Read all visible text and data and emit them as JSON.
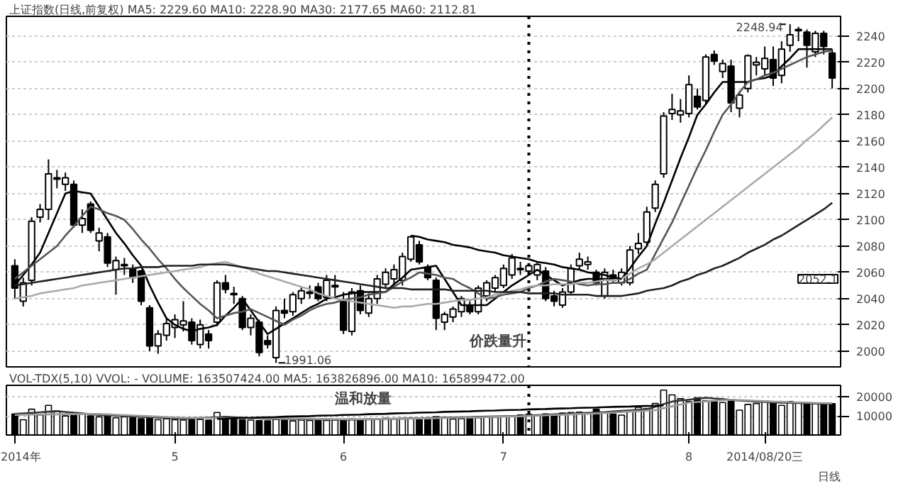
{
  "chart_data": [
    {
      "type": "candlestick",
      "title": "上证指数(日线,前复权) MA5: 2229.60 MA10: 2228.90 MA30: 2177.65 MA60: 2112.81",
      "categories": [
        null,
        null,
        null,
        null,
        null,
        null,
        null,
        null,
        null,
        null,
        null,
        null,
        null,
        null,
        null,
        null,
        null,
        null,
        null,
        null,
        null,
        null,
        null,
        null,
        null,
        null,
        null,
        null,
        null,
        null,
        null,
        null,
        null,
        null,
        null,
        null,
        null,
        null,
        null,
        null,
        null,
        null,
        null,
        null,
        null,
        null,
        null,
        null,
        null,
        null,
        null,
        null,
        null,
        null,
        null,
        null,
        null,
        null,
        null,
        null,
        null,
        null,
        null,
        null,
        null,
        null,
        null,
        null,
        null,
        null,
        null,
        null,
        null,
        null,
        null,
        null,
        null,
        null,
        null,
        null,
        null,
        null,
        null,
        null,
        null,
        null,
        null,
        null,
        null,
        null,
        null,
        null,
        null,
        null,
        null,
        null,
        null,
        null
      ],
      "ohlc": [
        [
          2065,
          2070,
          2040,
          2048
        ],
        [
          2038,
          2056,
          2034,
          2052
        ],
        [
          2054,
          2102,
          2050,
          2099
        ],
        [
          2102,
          2112,
          2098,
          2108
        ],
        [
          2108,
          2146,
          2100,
          2135
        ],
        [
          2131,
          2138,
          2124,
          2132
        ],
        [
          2127,
          2136,
          2122,
          2132
        ],
        [
          2127,
          2130,
          2094,
          2096
        ],
        [
          2096,
          2108,
          2090,
          2101
        ],
        [
          2112,
          2114,
          2090,
          2092
        ],
        [
          2084,
          2094,
          2076,
          2090
        ],
        [
          2087,
          2090,
          2064,
          2067
        ],
        [
          2062,
          2072,
          2043,
          2069
        ],
        [
          2065,
          2071,
          2058,
          2066
        ],
        [
          2063,
          2066,
          2052,
          2056
        ],
        [
          2061,
          2062,
          2035,
          2038
        ],
        [
          2033,
          2035,
          2000,
          2004
        ],
        [
          2004,
          2016,
          1998,
          2013
        ],
        [
          2012,
          2025,
          2008,
          2021
        ],
        [
          2018,
          2028,
          2010,
          2024
        ],
        [
          2020,
          2038,
          2015,
          2023
        ],
        [
          2022,
          2025,
          2005,
          2008
        ],
        [
          2005,
          2024,
          2002,
          2020
        ],
        [
          2013,
          2016,
          2002,
          2008
        ],
        [
          2022,
          2054,
          2019,
          2052
        ],
        [
          2052,
          2058,
          2044,
          2047
        ],
        [
          2044,
          2049,
          2036,
          2043
        ],
        [
          2040,
          2042,
          2016,
          2018
        ],
        [
          2018,
          2028,
          2012,
          2025
        ],
        [
          2022,
          2024,
          1996,
          1999
        ],
        [
          2008,
          2012,
          2002,
          2005
        ],
        [
          1995,
          2034,
          1991.06,
          2031
        ],
        [
          2031,
          2040,
          2025,
          2029
        ],
        [
          2030,
          2045,
          2027,
          2043
        ],
        [
          2040,
          2049,
          2036,
          2046
        ],
        [
          2044,
          2050,
          2040,
          2045
        ],
        [
          2049,
          2052,
          2038,
          2040
        ],
        [
          2041,
          2058,
          2038,
          2054
        ],
        [
          2049,
          2058,
          2042,
          2050
        ],
        [
          2038,
          2045,
          2013,
          2016
        ],
        [
          2015,
          2048,
          2012,
          2045
        ],
        [
          2046,
          2050,
          2028,
          2031
        ],
        [
          2029,
          2044,
          2026,
          2040
        ],
        [
          2040,
          2058,
          2036,
          2055
        ],
        [
          2051,
          2063,
          2048,
          2060
        ],
        [
          2055,
          2066,
          2050,
          2062
        ],
        [
          2054,
          2075,
          2050,
          2072
        ],
        [
          2070,
          2088,
          2068,
          2087
        ],
        [
          2081,
          2084,
          2066,
          2068
        ],
        [
          2064,
          2066,
          2054,
          2056
        ],
        [
          2054,
          2056,
          2016,
          2025
        ],
        [
          2022,
          2030,
          2016,
          2028
        ],
        [
          2026,
          2034,
          2022,
          2032
        ],
        [
          2030,
          2042,
          2026,
          2040
        ],
        [
          2035,
          2038,
          2028,
          2030
        ],
        [
          2030,
          2050,
          2028,
          2048
        ],
        [
          2042,
          2054,
          2038,
          2052
        ],
        [
          2048,
          2058,
          2045,
          2056
        ],
        [
          2050,
          2066,
          2048,
          2063
        ],
        [
          2058,
          2074,
          2055,
          2071
        ],
        [
          2063,
          2068,
          2058,
          2062
        ],
        [
          2061,
          2067,
          2058,
          2065
        ],
        [
          2058,
          2068,
          2054,
          2066
        ],
        [
          2061,
          2064,
          2038,
          2040
        ],
        [
          2042,
          2046,
          2034,
          2038
        ],
        [
          2035,
          2048,
          2033,
          2045
        ],
        [
          2045,
          2066,
          2043,
          2063
        ],
        [
          2065,
          2075,
          2062,
          2070
        ],
        [
          2066,
          2072,
          2062,
          2068
        ],
        [
          2060,
          2062,
          2050,
          2052
        ],
        [
          2042,
          2063,
          2040,
          2060
        ],
        [
          2058,
          2062,
          2052,
          2054
        ],
        [
          2052,
          2063,
          2050,
          2060
        ],
        [
          2052,
          2080,
          2050,
          2077
        ],
        [
          2078,
          2090,
          2074,
          2082
        ],
        [
          2083,
          2110,
          2080,
          2106
        ],
        [
          2109,
          2130,
          2106,
          2127
        ],
        [
          2135,
          2182,
          2132,
          2179
        ],
        [
          2181,
          2196,
          2176,
          2184
        ],
        [
          2180,
          2192,
          2174,
          2183
        ],
        [
          2181,
          2210,
          2178,
          2203
        ],
        [
          2194,
          2200,
          2184,
          2186
        ],
        [
          2191,
          2226,
          2188,
          2224
        ],
        [
          2226,
          2229,
          2218,
          2221
        ],
        [
          2213,
          2222,
          2208,
          2219
        ],
        [
          2217,
          2222,
          2182,
          2189
        ],
        [
          2185,
          2198,
          2178,
          2195
        ],
        [
          2200,
          2226,
          2197,
          2225
        ],
        [
          2218,
          2224,
          2210,
          2220
        ],
        [
          2215,
          2232,
          2210,
          2223
        ],
        [
          2222,
          2232,
          2202,
          2208
        ],
        [
          2210,
          2236,
          2204,
          2230
        ],
        [
          2233,
          2248.94,
          2228,
          2241
        ],
        [
          2244,
          2247,
          2236,
          2245
        ],
        [
          2243,
          2245,
          2216,
          2233
        ],
        [
          2228,
          2244,
          2224,
          2242
        ],
        [
          2242,
          2244,
          2226,
          2232
        ],
        [
          2227,
          2230,
          2200,
          2208
        ]
      ],
      "series": [
        {
          "type": "line",
          "color": "#000000",
          "values": [
            2050,
            2058,
            2066,
            2075,
            2090,
            2105,
            2120,
            2122,
            2121,
            2120,
            2110,
            2100,
            2090,
            2082,
            2073,
            2065,
            2050,
            2037,
            2025,
            2020,
            2017,
            2015,
            2017,
            2018,
            2020,
            2027,
            2033,
            2040,
            2031,
            2022,
            2013,
            2017,
            2021,
            2025,
            2029,
            2033,
            2036,
            2040,
            2041,
            2043,
            2044,
            2045,
            2045,
            2045,
            2045,
            2051,
            2056,
            2062,
            2063,
            2064,
            2065,
            2055,
            2045,
            2035,
            2035,
            2035,
            2035,
            2040,
            2045,
            2050,
            2054,
            2058,
            2062,
            2058,
            2054,
            2050,
            2052,
            2054,
            2055,
            2055,
            2055,
            2055,
            2055,
            2063,
            2072,
            2080,
            2097,
            2113,
            2130,
            2147,
            2163,
            2180,
            2188,
            2197,
            2205,
            2205,
            2205,
            2205,
            2207,
            2208,
            2210,
            2217,
            2223,
            2230,
            2230,
            2230,
            2230,
            2230
          ]
        },
        {
          "type": "line",
          "color": "#555555",
          "values": [
            2055,
            2060,
            2065,
            2070,
            2075,
            2080,
            2088,
            2095,
            2103,
            2110,
            2108,
            2105,
            2103,
            2100,
            2093,
            2085,
            2078,
            2070,
            2063,
            2055,
            2048,
            2042,
            2036,
            2031,
            2025,
            2027,
            2029,
            2030,
            2032,
            2029,
            2026,
            2023,
            2020,
            2024,
            2027,
            2031,
            2034,
            2036,
            2037,
            2039,
            2040,
            2041,
            2043,
            2044,
            2045,
            2049,
            2053,
            2056,
            2060,
            2059,
            2058,
            2056,
            2055,
            2051,
            2048,
            2044,
            2040,
            2041,
            2043,
            2044,
            2045,
            2048,
            2050,
            2053,
            2055,
            2054,
            2053,
            2051,
            2050,
            2051,
            2051,
            2052,
            2052,
            2055,
            2059,
            2062,
            2074,
            2086,
            2098,
            2112,
            2126,
            2140,
            2153,
            2167,
            2180,
            2188,
            2197,
            2205,
            2207,
            2210,
            2212,
            2215,
            2218,
            2221,
            2224,
            2226,
            2228,
            2229
          ]
        },
        {
          "type": "line",
          "color": "#aaaaaa",
          "values": [
            2040,
            2041,
            2042,
            2044,
            2045,
            2046,
            2047,
            2048,
            2050,
            2051,
            2052,
            2053,
            2054,
            2055,
            2056,
            2057,
            2058,
            2059,
            2060,
            2061,
            2062,
            2063,
            2064,
            2066,
            2067,
            2068,
            2066,
            2064,
            2062,
            2059,
            2057,
            2055,
            2053,
            2051,
            2049,
            2047,
            2044,
            2042,
            2040,
            2039,
            2038,
            2037,
            2036,
            2035,
            2034,
            2033,
            2034,
            2034,
            2035,
            2036,
            2036,
            2037,
            2038,
            2039,
            2039,
            2040,
            2041,
            2043,
            2044,
            2046,
            2047,
            2049,
            2050,
            2050,
            2051,
            2051,
            2051,
            2052,
            2052,
            2053,
            2054,
            2054,
            2055,
            2059,
            2063,
            2066,
            2070,
            2075,
            2080,
            2085,
            2090,
            2095,
            2100,
            2105,
            2110,
            2115,
            2120,
            2125,
            2130,
            2135,
            2140,
            2145,
            2150,
            2155,
            2161,
            2166,
            2172,
            2178
          ]
        },
        {
          "type": "line",
          "color": "#222222",
          "values": [
            2050,
            2051,
            2052,
            2053,
            2054,
            2055,
            2056,
            2057,
            2058,
            2059,
            2060,
            2061,
            2062,
            2063,
            2063,
            2064,
            2064,
            2064,
            2065,
            2065,
            2065,
            2065,
            2066,
            2066,
            2066,
            2066,
            2065,
            2064,
            2063,
            2062,
            2061,
            2061,
            2060,
            2059,
            2058,
            2057,
            2056,
            2055,
            2054,
            2053,
            2052,
            2051,
            2050,
            2049,
            2048,
            2048,
            2048,
            2047,
            2047,
            2047,
            2047,
            2047,
            2046,
            2046,
            2046,
            2046,
            2046,
            2045,
            2045,
            2045,
            2045,
            2044,
            2044,
            2044,
            2044,
            2043,
            2043,
            2043,
            2043,
            2042,
            2042,
            2042,
            2042,
            2043,
            2044,
            2046,
            2047,
            2048,
            2050,
            2053,
            2055,
            2058,
            2060,
            2063,
            2065,
            2068,
            2071,
            2075,
            2078,
            2081,
            2085,
            2088,
            2092,
            2096,
            2100,
            2104,
            2108,
            2113
          ]
        },
        {
          "type": "line",
          "color": "#000000",
          "values": [
            null,
            null,
            null,
            null,
            null,
            null,
            null,
            null,
            null,
            null,
            null,
            null,
            null,
            null,
            null,
            null,
            null,
            null,
            null,
            null,
            null,
            null,
            null,
            null,
            null,
            null,
            null,
            null,
            null,
            null,
            null,
            null,
            null,
            null,
            null,
            null,
            null,
            null,
            null,
            null,
            null,
            null,
            null,
            null,
            null,
            null,
            null,
            2088,
            2087,
            2085,
            2084,
            2083,
            2081,
            2080,
            2079,
            2077,
            2076,
            2075,
            2073,
            2072,
            2071,
            2070,
            2068,
            2067,
            2066,
            2064,
            2063,
            2062,
            2060,
            2059,
            2058,
            2056,
            2055,
            null,
            null,
            null,
            null,
            null,
            null,
            null,
            null,
            null,
            null,
            null,
            null,
            null,
            null,
            null,
            null,
            null,
            null,
            null,
            null,
            null,
            null,
            null,
            null,
            null
          ]
        }
      ],
      "ylim": [
        1988,
        2255
      ],
      "yticks": [
        2000,
        2020,
        2040,
        2060,
        2080,
        2100,
        2120,
        2140,
        2160,
        2180,
        2200,
        2220,
        2240
      ],
      "grid": "y",
      "tick_labels": "y",
      "annotations": [
        "1991.06",
        "2248.94",
        "2052.1",
        "价跌量升"
      ]
    },
    {
      "type": "bar",
      "title": "VOL-TDX(5,10) VVOL: - VOLUME: 163507424.00 MA5: 163826896.00 MA10: 165899472.00",
      "categories": [
        "2014年",
        null,
        null,
        null,
        null,
        null,
        null,
        null,
        null,
        null,
        null,
        null,
        null,
        null,
        null,
        null,
        null,
        null,
        null,
        "5",
        null,
        null,
        null,
        null,
        null,
        null,
        null,
        null,
        null,
        null,
        null,
        null,
        null,
        null,
        null,
        null,
        null,
        null,
        null,
        "6",
        null,
        null,
        null,
        null,
        null,
        null,
        null,
        null,
        null,
        null,
        null,
        null,
        null,
        null,
        null,
        null,
        null,
        null,
        "7",
        null,
        null,
        null,
        null,
        null,
        null,
        null,
        null,
        null,
        null,
        null,
        null,
        null,
        null,
        null,
        null,
        null,
        null,
        null,
        null,
        null,
        "8",
        null,
        null,
        null,
        null,
        null,
        null,
        null,
        null,
        "2014/08/20三",
        null,
        null,
        null,
        null,
        null,
        null,
        null,
        null
      ],
      "values": [
        11000,
        8000,
        13500,
        10500,
        15500,
        12500,
        10000,
        10500,
        11000,
        10000,
        9500,
        10000,
        9000,
        9500,
        9000,
        8500,
        9000,
        8000,
        8500,
        8000,
        7800,
        8000,
        8200,
        7800,
        11800,
        9500,
        8500,
        8000,
        7800,
        7500,
        7400,
        8200,
        7600,
        7400,
        7800,
        7600,
        8000,
        7600,
        7800,
        8200,
        8400,
        8000,
        8400,
        8200,
        8800,
        8600,
        8700,
        8900,
        8800,
        9000,
        9500,
        9200,
        8400,
        8600,
        8500,
        9000,
        9200,
        9400,
        9600,
        9600,
        10500,
        10800,
        10400,
        11000,
        10200,
        11500,
        11800,
        12000,
        11400,
        13500,
        11600,
        11000,
        10400,
        12200,
        14500,
        13800,
        16500,
        23500,
        21000,
        19000,
        17500,
        19500,
        18000,
        17800,
        17000,
        17800,
        13000,
        16000,
        16500,
        17800,
        17000,
        15500,
        17500,
        17000,
        16800,
        16600,
        16400,
        16400
      ],
      "colors": [
        "#000000",
        "#ffffff",
        "#ffffff",
        "#ffffff",
        "#ffffff",
        "#ffffff",
        "#ffffff",
        "#000000",
        "#ffffff",
        "#000000",
        "#ffffff",
        "#000000",
        "#ffffff",
        "#ffffff",
        "#000000",
        "#000000",
        "#000000",
        "#ffffff",
        "#ffffff",
        "#ffffff",
        "#ffffff",
        "#000000",
        "#ffffff",
        "#000000",
        "#ffffff",
        "#000000",
        "#000000",
        "#000000",
        "#ffffff",
        "#000000",
        "#000000",
        "#ffffff",
        "#000000",
        "#ffffff",
        "#ffffff",
        "#ffffff",
        "#000000",
        "#ffffff",
        "#ffffff",
        "#000000",
        "#ffffff",
        "#000000",
        "#ffffff",
        "#ffffff",
        "#ffffff",
        "#ffffff",
        "#ffffff",
        "#ffffff",
        "#000000",
        "#000000",
        "#000000",
        "#ffffff",
        "#ffffff",
        "#ffffff",
        "#000000",
        "#ffffff",
        "#ffffff",
        "#ffffff",
        "#ffffff",
        "#ffffff",
        "#000000",
        "#ffffff",
        "#ffffff",
        "#000000",
        "#000000",
        "#ffffff",
        "#ffffff",
        "#ffffff",
        "#ffffff",
        "#000000",
        "#ffffff",
        "#000000",
        "#ffffff",
        "#ffffff",
        "#ffffff",
        "#ffffff",
        "#ffffff",
        "#ffffff",
        "#ffffff",
        "#ffffff",
        "#ffffff",
        "#000000",
        "#ffffff",
        "#000000",
        "#ffffff",
        "#000000",
        "#ffffff",
        "#ffffff",
        "#ffffff",
        "#ffffff",
        "#000000",
        "#ffffff",
        "#ffffff",
        "#ffffff",
        "#000000",
        "#ffffff",
        "#000000",
        "#000000"
      ],
      "series": [
        {
          "type": "line",
          "color": "#333333",
          "values": [
            11000,
            11300,
            11600,
            11900,
            12200,
            12500,
            12100,
            11700,
            11300,
            10900,
            10500,
            10300,
            10100,
            9900,
            9700,
            9500,
            9300,
            9100,
            8900,
            8700,
            8500,
            8700,
            8900,
            9100,
            9300,
            9500,
            9300,
            9100,
            8900,
            8700,
            8500,
            8500,
            8400,
            8400,
            8300,
            8300,
            8200,
            8200,
            8100,
            8100,
            8000,
            8100,
            8200,
            8300,
            8400,
            8500,
            8600,
            8700,
            8800,
            8900,
            9000,
            9100,
            9200,
            9300,
            9400,
            9500,
            9600,
            9700,
            9800,
            9900,
            10000,
            10200,
            10400,
            10600,
            10800,
            11000,
            11200,
            11400,
            11600,
            11800,
            12000,
            12300,
            12600,
            12900,
            13200,
            13500,
            14800,
            16200,
            17500,
            18000,
            18500,
            19000,
            19500,
            19100,
            18800,
            18400,
            18000,
            17800,
            17500,
            17300,
            17000,
            16900,
            16800,
            16700,
            16600,
            16500,
            16400,
            16400
          ]
        },
        {
          "type": "line",
          "color": "#999999",
          "values": [
            10500,
            10600,
            10700,
            10700,
            10800,
            10800,
            10900,
            10900,
            11000,
            11000,
            11000,
            10800,
            10600,
            10400,
            10200,
            10000,
            9800,
            9600,
            9400,
            9200,
            9000,
            9000,
            9000,
            8900,
            8900,
            8900,
            8900,
            8900,
            8800,
            8800,
            8800,
            8700,
            8700,
            8600,
            8600,
            8500,
            8400,
            8400,
            8300,
            8300,
            8200,
            8300,
            8300,
            8400,
            8400,
            8500,
            8600,
            8600,
            8700,
            8700,
            8800,
            8900,
            9000,
            9100,
            9200,
            9300,
            9400,
            9500,
            9600,
            9700,
            9800,
            10000,
            10100,
            10300,
            10500,
            10600,
            10800,
            11000,
            11100,
            11300,
            11500,
            11800,
            12000,
            12300,
            12500,
            12800,
            13000,
            14000,
            15000,
            16000,
            17000,
            17300,
            17600,
            17900,
            18200,
            18500,
            18300,
            18100,
            17900,
            17700,
            17500,
            17400,
            17200,
            17100,
            17000,
            16800,
            16700,
            16600
          ]
        },
        {
          "type": "line",
          "color": "#000000",
          "values": [
            null,
            null,
            null,
            null,
            null,
            null,
            null,
            null,
            null,
            null,
            null,
            null,
            null,
            null,
            null,
            null,
            null,
            null,
            null,
            null,
            null,
            null,
            null,
            null,
            8500,
            8600,
            8800,
            8900,
            9000,
            9200,
            9300,
            9400,
            9600,
            9700,
            9800,
            9900,
            10100,
            10200,
            10300,
            10500,
            10600,
            10700,
            10900,
            11000,
            11100,
            11300,
            11400,
            11500,
            11700,
            11800,
            11900,
            12100,
            12200,
            12300,
            12400,
            12600,
            12700,
            12800,
            13000,
            13100,
            13200,
            13400,
            13500,
            13600,
            13800,
            13900,
            14000,
            14200,
            14300,
            14400,
            14600,
            14700,
            14800,
            14900,
            15100,
            15200,
            15300,
            15500,
            null,
            null,
            null,
            null,
            null,
            null,
            null,
            null,
            null,
            null,
            null,
            null,
            null,
            null,
            null,
            null,
            null,
            null,
            null,
            null
          ]
        }
      ],
      "ylim": [
        0,
        26000
      ],
      "yticks": [
        10000,
        20000
      ],
      "grid": "y",
      "annotations": [
        "温和放量",
        "日线"
      ]
    }
  ]
}
